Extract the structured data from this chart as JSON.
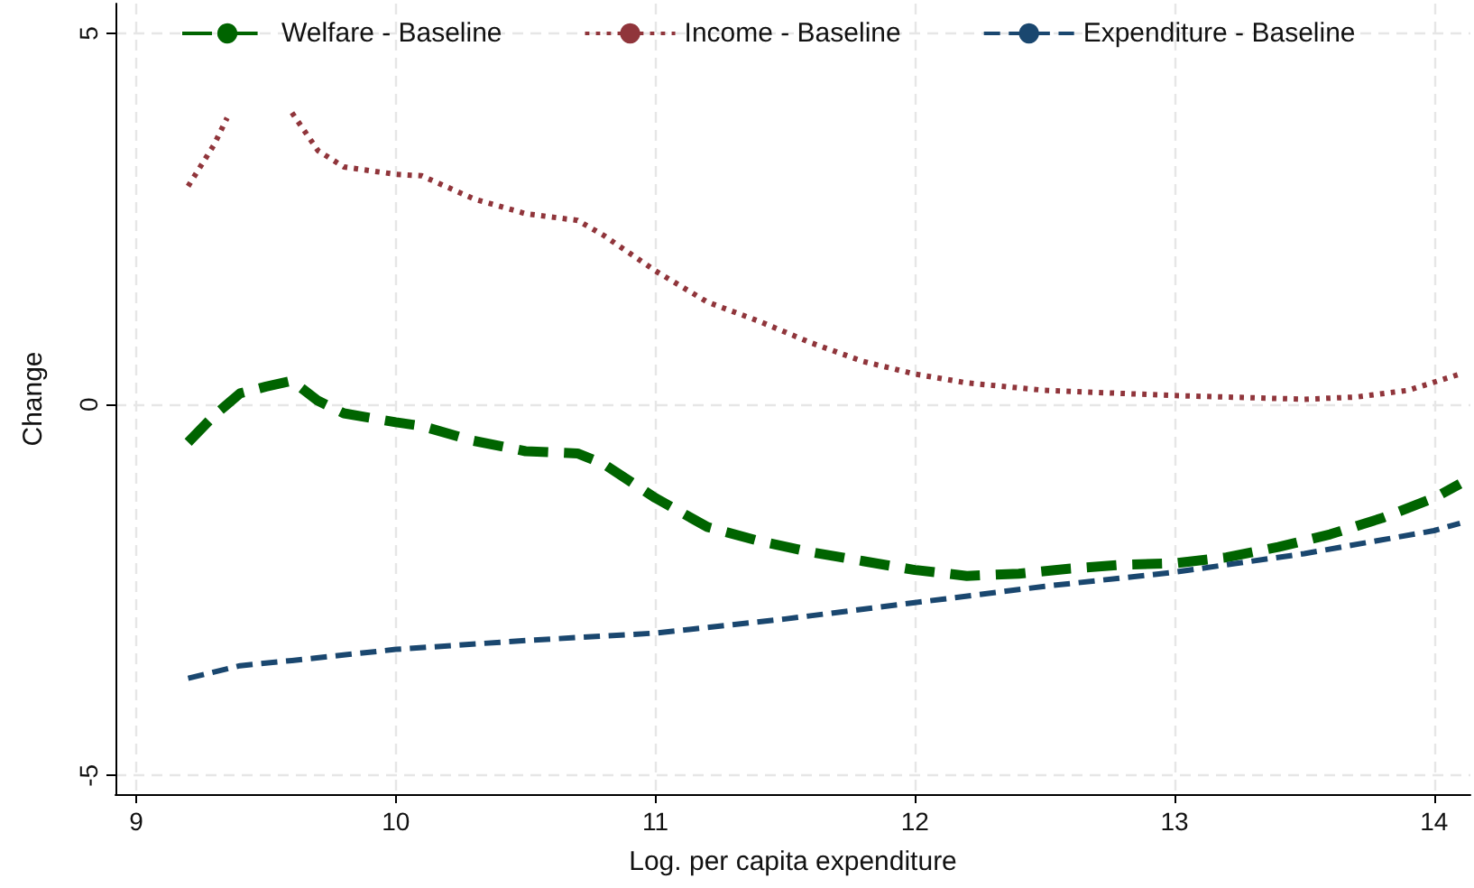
{
  "chart_data": {
    "type": "line",
    "xlabel": "Log. per capita expenditure",
    "ylabel": "Change",
    "xlim": [
      8.92,
      14.14
    ],
    "xticks": [
      9,
      10,
      11,
      12,
      13,
      14
    ],
    "ylim": [
      -5.25,
      5.4
    ],
    "yticks": [
      -5,
      0,
      5
    ],
    "grid": true,
    "legend": "top",
    "marker": "none",
    "series": [
      {
        "name": "Welfare - Baseline",
        "color": "#006400",
        "line_style": "dashed",
        "x": [
          9.2,
          9.3,
          9.4,
          9.5,
          9.6,
          9.7,
          9.8,
          10.0,
          10.1,
          10.3,
          10.5,
          10.7,
          10.8,
          11.0,
          11.2,
          11.4,
          11.6,
          11.8,
          12.0,
          12.2,
          12.4,
          12.6,
          12.8,
          13.0,
          13.2,
          13.4,
          13.6,
          13.8,
          14.0,
          14.1
        ],
        "values": [
          -0.51,
          -0.15,
          0.15,
          0.24,
          0.32,
          0.05,
          -0.12,
          -0.24,
          -0.29,
          -0.49,
          -0.63,
          -0.66,
          -0.8,
          -1.26,
          -1.65,
          -1.84,
          -1.99,
          -2.11,
          -2.23,
          -2.31,
          -2.28,
          -2.21,
          -2.16,
          -2.14,
          -2.06,
          -1.92,
          -1.75,
          -1.53,
          -1.26,
          -1.07
        ]
      },
      {
        "name": "Income - Baseline",
        "color": "#90353b",
        "line_style": "dotted",
        "x": [
          9.2,
          9.3,
          9.35,
          9.45,
          9.5,
          9.6,
          9.7,
          9.8,
          10.0,
          10.1,
          10.3,
          10.5,
          10.7,
          10.8,
          11.0,
          11.2,
          11.4,
          11.6,
          11.8,
          12.0,
          12.2,
          12.5,
          13.0,
          13.5,
          13.7,
          13.9,
          14.1
        ],
        "values": [
          2.94,
          3.5,
          3.86,
          null,
          null,
          3.93,
          3.42,
          3.2,
          3.1,
          3.08,
          2.77,
          2.57,
          2.48,
          2.28,
          1.8,
          1.38,
          1.12,
          0.83,
          0.58,
          0.41,
          0.29,
          0.19,
          0.12,
          0.07,
          0.1,
          0.19,
          0.41
        ]
      },
      {
        "name": "Expenditure - Baseline",
        "color": "#1a476f",
        "line_style": "dashed",
        "x": [
          9.2,
          9.4,
          9.6,
          10.0,
          10.5,
          11.0,
          11.5,
          12.0,
          12.5,
          13.0,
          13.5,
          14.0,
          14.1
        ],
        "values": [
          -3.69,
          -3.52,
          -3.45,
          -3.3,
          -3.18,
          -3.08,
          -2.89,
          -2.67,
          -2.45,
          -2.26,
          -2.01,
          -1.7,
          -1.6
        ]
      }
    ]
  }
}
